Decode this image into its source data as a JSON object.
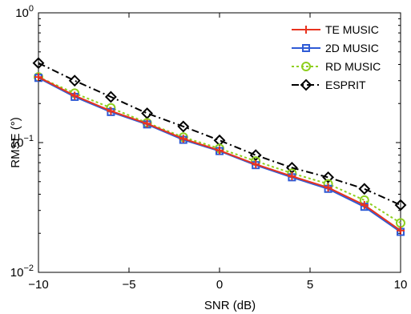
{
  "chart_data": {
    "type": "line",
    "title": "",
    "xlabel": "SNR (dB)",
    "ylabel": "RMSE (°)",
    "yscale": "log",
    "xlim": [
      -10,
      10
    ],
    "ylim": [
      0.01,
      1
    ],
    "x_ticks": [
      "−10",
      "−5",
      "0",
      "5",
      "10"
    ],
    "y_ticks": [
      {
        "base": "10",
        "exp": "0"
      },
      {
        "base": "10",
        "exp": "−1"
      },
      {
        "base": "10",
        "exp": "−2"
      }
    ],
    "grid": false,
    "legend_position": "top-right",
    "x": [
      -10,
      -8,
      -6,
      -4,
      -2,
      0,
      2,
      4,
      6,
      8,
      10
    ],
    "series": [
      {
        "name": "TE MUSIC",
        "color": "#e8331f",
        "dash": "solid",
        "marker": "plus",
        "values": [
          0.32,
          0.23,
          0.175,
          0.14,
          0.107,
          0.087,
          0.068,
          0.055,
          0.045,
          0.033,
          0.021
        ]
      },
      {
        "name": "2D MUSIC",
        "color": "#2f5bd6",
        "dash": "solid",
        "marker": "square",
        "values": [
          0.315,
          0.225,
          0.172,
          0.138,
          0.105,
          0.086,
          0.067,
          0.054,
          0.044,
          0.032,
          0.0205
        ]
      },
      {
        "name": "RD MUSIC",
        "color": "#8fcf1f",
        "dash": "dotted",
        "marker": "circle",
        "values": [
          0.32,
          0.24,
          0.185,
          0.142,
          0.11,
          0.09,
          0.072,
          0.058,
          0.048,
          0.036,
          0.024
        ]
      },
      {
        "name": "ESPRIT",
        "color": "#000000",
        "dash": "dashdot",
        "marker": "diamond",
        "values": [
          0.41,
          0.3,
          0.225,
          0.168,
          0.133,
          0.104,
          0.08,
          0.064,
          0.054,
          0.044,
          0.033
        ]
      }
    ]
  }
}
